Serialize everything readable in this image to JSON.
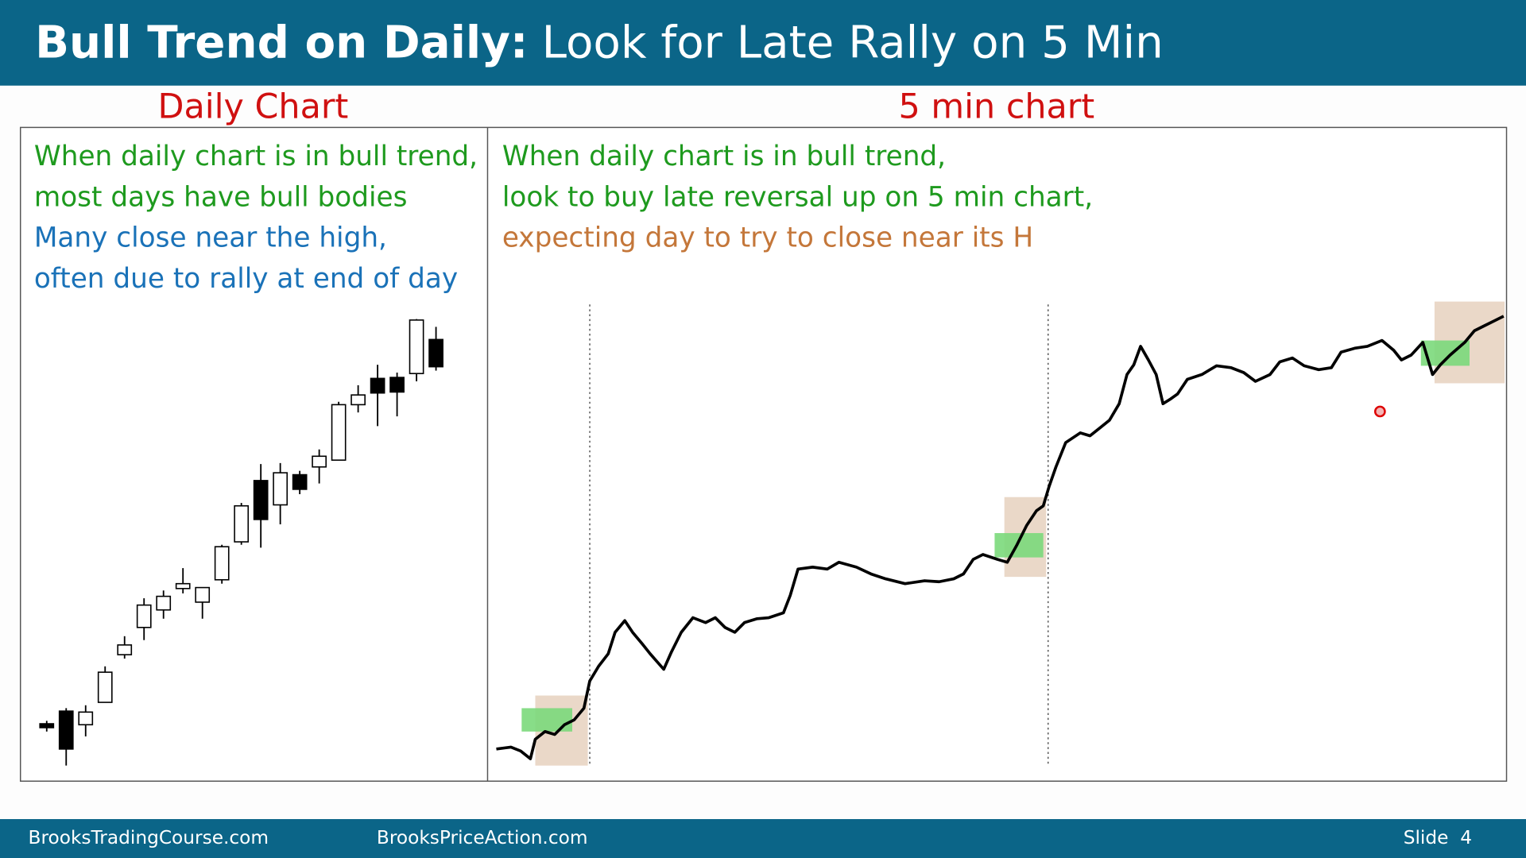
{
  "header": {
    "title_bold": "Bull Trend on Daily:",
    "title_rest": "Look for Late Rally on 5 Min"
  },
  "panels": [
    {
      "label": "Daily Chart",
      "lines": [
        "When daily chart is in bull trend,",
        "most days have bull bodies",
        "Many close near the high,",
        "often due to rally at end of day"
      ]
    },
    {
      "label": "5 min chart",
      "lines": [
        "When daily chart is in bull trend,",
        "look to buy late reversal up on 5 min chart,",
        "expecting day to try to close near its H"
      ]
    }
  ],
  "footer": {
    "left": "BrooksTradingCourse.com",
    "middle": "BrooksPriceAction.com",
    "slide": "Slide  4"
  }
}
